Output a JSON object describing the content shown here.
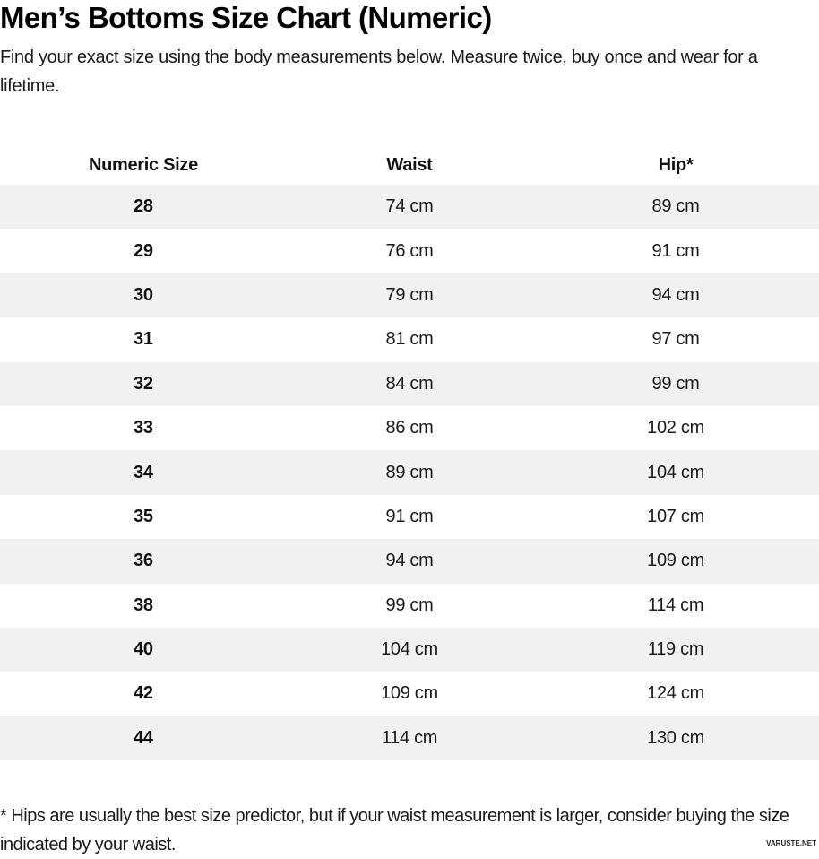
{
  "page": {
    "title": "Men’s Bottoms Size Chart (Numeric)",
    "intro": "Find your exact size using the body measurements below. Measure twice, buy once and wear for a lifetime.",
    "footnote": "* Hips are usually the best size predictor, but if your waist measurement is larger, consider buying the size indicated by your waist.",
    "watermark": "VARUSTE.NET"
  },
  "table": {
    "columns": [
      {
        "key": "size",
        "label": "Numeric Size"
      },
      {
        "key": "waist",
        "label": "Waist"
      },
      {
        "key": "hip",
        "label": "Hip*"
      }
    ],
    "rows": [
      {
        "size": "28",
        "waist": "74 cm",
        "hip": "89 cm"
      },
      {
        "size": "29",
        "waist": "76 cm",
        "hip": "91 cm"
      },
      {
        "size": "30",
        "waist": "79 cm",
        "hip": "94 cm"
      },
      {
        "size": "31",
        "waist": "81 cm",
        "hip": "97 cm"
      },
      {
        "size": "32",
        "waist": "84 cm",
        "hip": "99 cm"
      },
      {
        "size": "33",
        "waist": "86 cm",
        "hip": "102 cm"
      },
      {
        "size": "34",
        "waist": "89 cm",
        "hip": "104 cm"
      },
      {
        "size": "35",
        "waist": "91 cm",
        "hip": "107 cm"
      },
      {
        "size": "36",
        "waist": "94 cm",
        "hip": "109 cm"
      },
      {
        "size": "38",
        "waist": "99 cm",
        "hip": "114 cm"
      },
      {
        "size": "40",
        "waist": "104 cm",
        "hip": "119 cm"
      },
      {
        "size": "42",
        "waist": "109 cm",
        "hip": "124 cm"
      },
      {
        "size": "44",
        "waist": "114 cm",
        "hip": "130 cm"
      }
    ]
  },
  "colors": {
    "stripe": "#f1f1f1",
    "text": "#1a1a1a",
    "background": "#ffffff"
  }
}
